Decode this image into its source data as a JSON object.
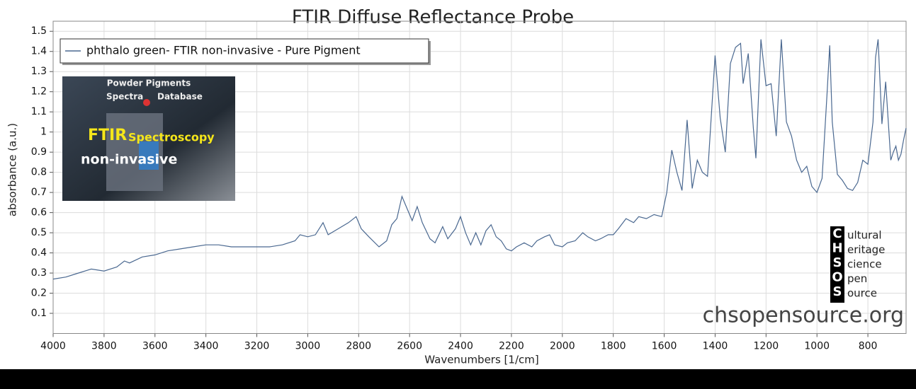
{
  "chart_data": {
    "type": "line",
    "title": "FTIR Diffuse Reflectance Probe",
    "x_label": "Wavenumbers [1/cm]",
    "y_label": "absorbance (a.u.)",
    "xlim": [
      4000,
      650
    ],
    "ylim": [
      0,
      1.55
    ],
    "xticks": [
      4000,
      3800,
      3600,
      3400,
      3200,
      3000,
      2800,
      2600,
      2400,
      2200,
      2000,
      1800,
      1600,
      1400,
      1200,
      1000,
      800
    ],
    "yticks": [
      0.1,
      0.2,
      0.3,
      0.4,
      0.5,
      0.6,
      0.7,
      0.8,
      0.9,
      1,
      1.1,
      1.2,
      1.3,
      1.4,
      1.5
    ],
    "grid": true,
    "legend": "top-left",
    "x": [
      4000,
      3950,
      3900,
      3850,
      3800,
      3750,
      3720,
      3700,
      3650,
      3600,
      3550,
      3500,
      3450,
      3400,
      3350,
      3300,
      3250,
      3200,
      3150,
      3100,
      3050,
      3030,
      3000,
      2970,
      2940,
      2920,
      2880,
      2840,
      2810,
      2790,
      2760,
      2720,
      2690,
      2670,
      2650,
      2630,
      2610,
      2590,
      2570,
      2550,
      2520,
      2500,
      2470,
      2450,
      2420,
      2400,
      2380,
      2360,
      2340,
      2320,
      2300,
      2280,
      2260,
      2240,
      2220,
      2200,
      2180,
      2150,
      2120,
      2100,
      2070,
      2050,
      2030,
      2000,
      1980,
      1950,
      1920,
      1900,
      1870,
      1850,
      1820,
      1800,
      1780,
      1750,
      1720,
      1700,
      1670,
      1640,
      1610,
      1590,
      1570,
      1550,
      1530,
      1510,
      1490,
      1470,
      1450,
      1430,
      1400,
      1380,
      1360,
      1340,
      1320,
      1300,
      1290,
      1270,
      1250,
      1240,
      1220,
      1200,
      1180,
      1160,
      1140,
      1120,
      1100,
      1080,
      1060,
      1040,
      1020,
      1000,
      980,
      960,
      950,
      940,
      920,
      900,
      880,
      860,
      840,
      820,
      800,
      780,
      770,
      760,
      745,
      730,
      710,
      700,
      690,
      680,
      670,
      660,
      650
    ],
    "series": [
      {
        "name": "phthalo green- FTIR non-invasive - Pure Pigment",
        "color": "#4a6890",
        "values": [
          0.27,
          0.28,
          0.3,
          0.32,
          0.31,
          0.33,
          0.36,
          0.35,
          0.38,
          0.39,
          0.41,
          0.42,
          0.43,
          0.44,
          0.44,
          0.43,
          0.43,
          0.43,
          0.43,
          0.44,
          0.46,
          0.49,
          0.48,
          0.49,
          0.55,
          0.49,
          0.52,
          0.55,
          0.58,
          0.52,
          0.48,
          0.43,
          0.46,
          0.54,
          0.57,
          0.68,
          0.62,
          0.56,
          0.63,
          0.55,
          0.47,
          0.45,
          0.53,
          0.47,
          0.52,
          0.58,
          0.5,
          0.44,
          0.5,
          0.44,
          0.51,
          0.54,
          0.48,
          0.46,
          0.42,
          0.41,
          0.43,
          0.45,
          0.43,
          0.46,
          0.48,
          0.49,
          0.44,
          0.43,
          0.45,
          0.46,
          0.5,
          0.48,
          0.46,
          0.47,
          0.49,
          0.49,
          0.52,
          0.57,
          0.55,
          0.58,
          0.57,
          0.59,
          0.58,
          0.7,
          0.91,
          0.8,
          0.71,
          1.06,
          0.72,
          0.86,
          0.8,
          0.78,
          1.38,
          1.07,
          0.9,
          1.34,
          1.42,
          1.44,
          1.24,
          1.39,
          1.02,
          0.87,
          1.46,
          1.23,
          1.24,
          0.98,
          1.46,
          1.05,
          0.98,
          0.86,
          0.8,
          0.83,
          0.73,
          0.7,
          0.77,
          1.2,
          1.43,
          1.05,
          0.79,
          0.76,
          0.72,
          0.71,
          0.75,
          0.86,
          0.84,
          1.05,
          1.37,
          1.46,
          1.04,
          1.25,
          0.86,
          0.9,
          0.93,
          0.86,
          0.89,
          0.96,
          1.02
        ]
      }
    ],
    "inset": {
      "line1": "Powder Pigments",
      "line2a": "Spectra",
      "line2b": "Database",
      "word1": "FTIR",
      "word2": "Spectroscopy",
      "word3": "non-invasive"
    },
    "logo": {
      "letters": [
        "C",
        "H",
        "S",
        "O",
        "S"
      ],
      "words": [
        "ultural",
        "eritage",
        "cience",
        "pen",
        "ource"
      ]
    },
    "website": "chsopensource.org"
  }
}
